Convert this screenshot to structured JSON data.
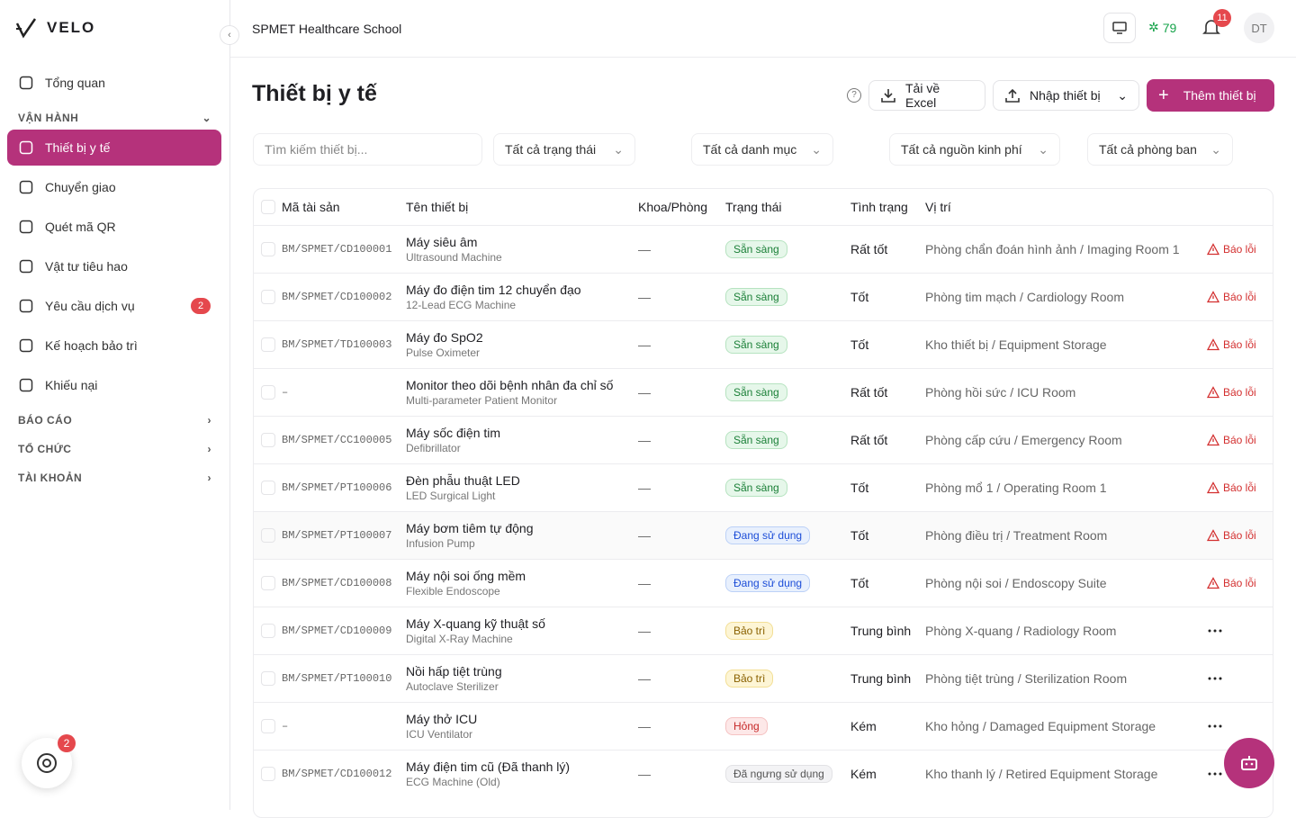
{
  "brand": "VELO",
  "sidebar": {
    "top_item": "Tổng quan",
    "sections": [
      {
        "title": "VẬN HÀNH",
        "items": [
          {
            "label": "Thiết bị y tế",
            "active": true
          },
          {
            "label": "Chuyển giao"
          },
          {
            "label": "Quét mã QR"
          },
          {
            "label": "Vật tư tiêu hao"
          },
          {
            "label": "Yêu cầu dịch vụ",
            "badge": "2"
          },
          {
            "label": "Kế hoạch bảo trì"
          },
          {
            "label": "Khiếu nại"
          }
        ]
      }
    ],
    "collapsed": [
      "BÁO CÁO",
      "TỔ CHỨC",
      "TÀI KHOẢN"
    ],
    "help_badge": "2"
  },
  "header": {
    "org": "SPMET Healthcare School",
    "points": "79",
    "notifications": "11",
    "avatar": "DT"
  },
  "page": {
    "title": "Thiết bị y tế",
    "buttons": {
      "export": "Tải về Excel",
      "import": "Nhập thiết bị",
      "add": "Thêm thiết bị"
    }
  },
  "filters": {
    "search": "Tìm kiếm thiết bị...",
    "selects": [
      "Tất cả trạng thái",
      "Tất cả danh mục",
      "Tất cả nguồn kinh phí",
      "Tất cả phòng ban"
    ]
  },
  "table": {
    "columns": [
      "Mã tài sản",
      "Tên thiết bị",
      "Khoa/Phòng",
      "Trạng thái",
      "Tình trạng",
      "Vị trí"
    ],
    "rows": [
      {
        "code": "BM/SPMET/CD100001",
        "name": "Máy siêu âm",
        "sub": "Ultrasound Machine",
        "dept": "—",
        "status": "Sẵn sàng",
        "status_color": "green",
        "condition": "Rất tốt",
        "location": "Phòng chẩn đoán hình ảnh / Imaging Room 1",
        "action": "Báo lỗi"
      },
      {
        "code": "BM/SPMET/CD100002",
        "name": "Máy đo điện tim 12 chuyển đạo",
        "sub": "12-Lead ECG Machine",
        "dept": "—",
        "status": "Sẵn sàng",
        "status_color": "green",
        "condition": "Tốt",
        "location": "Phòng tim mạch / Cardiology Room",
        "action": "Báo lỗi"
      },
      {
        "code": "BM/SPMET/TD100003",
        "name": "Máy đo SpO2",
        "sub": "Pulse Oximeter",
        "dept": "—",
        "status": "Sẵn sàng",
        "status_color": "green",
        "condition": "Tốt",
        "location": "Kho thiết bị / Equipment Storage",
        "action": "Báo lỗi"
      },
      {
        "code": "–",
        "name": "Monitor theo dõi bệnh nhân đa chỉ số",
        "sub": "Multi-parameter Patient Monitor",
        "dept": "—",
        "status": "Sẵn sàng",
        "status_color": "green",
        "condition": "Rất tốt",
        "location": "Phòng hồi sức / ICU Room",
        "action": "Báo lỗi"
      },
      {
        "code": "BM/SPMET/CC100005",
        "name": "Máy sốc điện tim",
        "sub": "Defibrillator",
        "dept": "—",
        "status": "Sẵn sàng",
        "status_color": "green",
        "condition": "Rất tốt",
        "location": "Phòng cấp cứu / Emergency Room",
        "action": "Báo lỗi"
      },
      {
        "code": "BM/SPMET/PT100006",
        "name": "Đèn phẫu thuật LED",
        "sub": "LED Surgical Light",
        "dept": "—",
        "status": "Sẵn sàng",
        "status_color": "green",
        "condition": "Tốt",
        "location": "Phòng mổ 1 / Operating Room 1",
        "action": "Báo lỗi"
      },
      {
        "code": "BM/SPMET/PT100007",
        "name": "Máy bơm tiêm tự động",
        "sub": "Infusion Pump",
        "dept": "—",
        "status": "Đang sử dụng",
        "status_color": "blue",
        "condition": "Tốt",
        "location": "Phòng điều trị / Treatment Room",
        "action": "Báo lỗi"
      },
      {
        "code": "BM/SPMET/CD100008",
        "name": "Máy nội soi ống mềm",
        "sub": "Flexible Endoscope",
        "dept": "—",
        "status": "Đang sử dụng",
        "status_color": "blue",
        "condition": "Tốt",
        "location": "Phòng nội soi / Endoscopy Suite",
        "action": "Báo lỗi"
      },
      {
        "code": "BM/SPMET/CD100009",
        "name": "Máy X-quang kỹ thuật số",
        "sub": "Digital X-Ray Machine",
        "dept": "—",
        "status": "Bảo trì",
        "status_color": "yellow",
        "condition": "Trung bình",
        "location": "Phòng X-quang / Radiology Room"
      },
      {
        "code": "BM/SPMET/PT100010",
        "name": "Nồi hấp tiệt trùng",
        "sub": "Autoclave Sterilizer",
        "dept": "—",
        "status": "Bảo trì",
        "status_color": "yellow",
        "condition": "Trung bình",
        "location": "Phòng tiệt trùng / Sterilization Room"
      },
      {
        "code": "–",
        "name": "Máy thở ICU",
        "sub": "ICU Ventilator",
        "dept": "—",
        "status": "Hỏng",
        "status_color": "red",
        "condition": "Kém",
        "location": "Kho hỏng / Damaged Equipment Storage"
      },
      {
        "code": "BM/SPMET/CD100012",
        "name": "Máy điện tim cũ (Đã thanh lý)",
        "sub": "ECG Machine (Old)",
        "dept": "—",
        "status": "Đã ngưng sử dụng",
        "status_color": "gray",
        "condition": "Kém",
        "location": "Kho thanh lý / Retired Equipment Storage"
      }
    ]
  }
}
